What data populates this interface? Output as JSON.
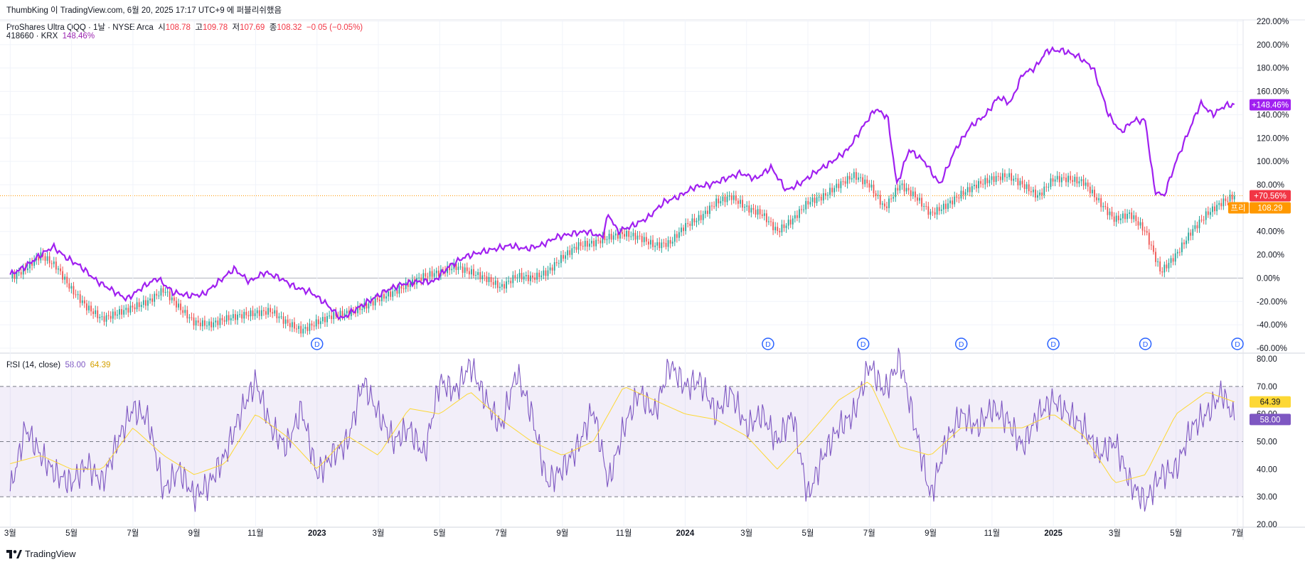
{
  "attribution": "ThumbKing 이 TradingView.com, 6월 20, 2025 17:17 UTC+9 에 퍼블리쉬했음",
  "main_legend": {
    "symbol": "ProShares Ultra QQQ · 1날 · NYSE Arca",
    "open_label": "시",
    "open": "108.78",
    "high_label": "고",
    "high": "109.78",
    "low_label": "저",
    "low": "107.69",
    "close_label": "종",
    "close": "108.32",
    "change": "−0.05 (−0.05%)"
  },
  "compare_legend": {
    "symbol": "418660 · KRX",
    "value": "148.46%"
  },
  "rsi_legend": {
    "title": "RSI (14, close)",
    "rsi": "58.00",
    "ma": "64.39"
  },
  "price_badges": {
    "compare": "+148.46%",
    "main_pct": "+70.56%",
    "pre_label": "프리",
    "pre_price": "108.29",
    "rsi_ma": "64.39",
    "rsi": "58.00"
  },
  "dividend_marker": "D",
  "branding": "TradingView",
  "colors": {
    "compare_line": "#a020f0",
    "candle_up": "#26a69a",
    "candle_down": "#ef5350",
    "rsi_line": "#7e57c2",
    "rsi_ma": "#fdd835",
    "rsi_band": "#7e57c2",
    "badge_pct": "#f23645",
    "badge_pre": "#ff9800",
    "badge_rsi_ma": "#fdd835",
    "dividend": "#2962ff"
  },
  "chart_data": [
    {
      "type": "line",
      "name": "price-panel",
      "y_unit": "%",
      "ylim": [
        -60,
        220
      ],
      "y_ticks": [
        "220.00%",
        "200.00%",
        "180.00%",
        "160.00%",
        "140.00%",
        "120.00%",
        "100.00%",
        "80.00%",
        "60.00%",
        "40.00%",
        "20.00%",
        "0.00%",
        "-20.00%",
        "-40.00%",
        "-60.00%"
      ],
      "y_tick_values": [
        220,
        200,
        180,
        160,
        140,
        120,
        100,
        80,
        60,
        40,
        20,
        0,
        -20,
        -40,
        -60
      ],
      "x_ticks": [
        "3월",
        "5월",
        "7월",
        "9월",
        "11월",
        "2023",
        "3월",
        "5월",
        "7월",
        "9월",
        "11월",
        "2024",
        "3월",
        "5월",
        "7월",
        "9월",
        "11월",
        "2025",
        "3월",
        "5월",
        "7월"
      ],
      "x_tick_months": [
        0,
        2,
        4,
        6,
        8,
        10,
        12,
        14,
        16,
        18,
        20,
        22,
        24,
        26,
        28,
        30,
        32,
        34,
        36,
        38,
        40
      ],
      "x_month_range": [
        -0.1,
        40
      ],
      "grid": true,
      "legend_position": "top-left",
      "series": [
        {
          "name": "418660 · KRX",
          "style": "line",
          "month": [
            0,
            0.5,
            1,
            1.4,
            1.8,
            2.3,
            2.8,
            3.3,
            3.8,
            4.3,
            4.8,
            5.3,
            5.8,
            6.3,
            6.8,
            7.3,
            7.8,
            8.3,
            8.8,
            9.3,
            9.8,
            10.3,
            10.8,
            11.3,
            11.8,
            12.3,
            12.8,
            13.3,
            13.8,
            14.3,
            14.8,
            15.3,
            15.8,
            16.3,
            16.8,
            17.3,
            17.8,
            18.3,
            18.8,
            19.3,
            19.5,
            19.8,
            20.3,
            20.8,
            21.3,
            21.8,
            22.3,
            22.8,
            23.3,
            23.8,
            24.3,
            24.8,
            25.3,
            25.8,
            26.2,
            26.8,
            27.3,
            27.8,
            28.2,
            28.6,
            28.9,
            29.3,
            29.8,
            30.3,
            30.8,
            31.3,
            31.8,
            32.2,
            32.6,
            33.0,
            33.4,
            33.8,
            34.3,
            34.8,
            35.3,
            35.8,
            36.2,
            36.6,
            37.0,
            37.3,
            37.6,
            38.0,
            38.4,
            38.8,
            39.2,
            39.6,
            39.9
          ],
          "value": [
            3,
            10,
            20,
            27,
            18,
            10,
            -2,
            -10,
            -18,
            -8,
            0,
            -12,
            -15,
            -14,
            -3,
            8,
            -3,
            5,
            0,
            -8,
            -12,
            -22,
            -35,
            -26,
            -18,
            -10,
            -5,
            -3,
            -3,
            10,
            18,
            22,
            25,
            28,
            25,
            28,
            35,
            38,
            40,
            35,
            55,
            40,
            45,
            52,
            65,
            70,
            78,
            80,
            85,
            90,
            85,
            95,
            75,
            82,
            90,
            100,
            110,
            130,
            145,
            138,
            80,
            110,
            100,
            80,
            110,
            130,
            140,
            155,
            150,
            175,
            180,
            195,
            195,
            190,
            180,
            140,
            125,
            135,
            135,
            75,
            70,
            100,
            125,
            150,
            140,
            148,
            148.46
          ]
        },
        {
          "name": "ProShares Ultra QQQ",
          "style": "candles",
          "month": [
            0,
            0.5,
            1,
            1.5,
            2,
            2.5,
            3,
            3.5,
            4,
            4.5,
            5,
            5.5,
            6,
            6.5,
            7,
            7.5,
            8,
            8.5,
            9,
            9.5,
            10,
            10.5,
            11,
            11.5,
            12,
            12.5,
            13,
            13.5,
            14,
            14.5,
            15,
            15.5,
            16,
            16.5,
            17,
            17.5,
            18,
            18.5,
            19,
            19.5,
            20,
            20.5,
            21,
            21.5,
            22,
            22.5,
            23,
            23.5,
            24,
            24.5,
            25,
            25.5,
            26,
            26.5,
            27,
            27.5,
            28,
            28.5,
            29,
            29.5,
            30,
            30.5,
            31,
            31.5,
            32,
            32.5,
            33,
            33.5,
            34,
            34.5,
            35,
            35.5,
            36,
            36.5,
            37,
            37.5,
            38,
            38.5,
            39,
            39.5,
            39.9
          ],
          "value": [
            0,
            8,
            20,
            10,
            -10,
            -25,
            -35,
            -30,
            -25,
            -20,
            -10,
            -25,
            -38,
            -40,
            -35,
            -32,
            -30,
            -28,
            -38,
            -45,
            -38,
            -32,
            -30,
            -25,
            -18,
            -12,
            -5,
            2,
            5,
            10,
            5,
            0,
            -8,
            2,
            0,
            5,
            18,
            28,
            30,
            35,
            38,
            35,
            28,
            30,
            45,
            52,
            65,
            70,
            60,
            55,
            40,
            50,
            65,
            70,
            80,
            88,
            80,
            60,
            80,
            70,
            55,
            62,
            72,
            80,
            85,
            88,
            80,
            70,
            85,
            85,
            82,
            65,
            50,
            55,
            40,
            5,
            20,
            40,
            55,
            65,
            70.56
          ]
        }
      ],
      "dividend_months": [
        10,
        24.7,
        27.8,
        31,
        34,
        37,
        40
      ],
      "baseline_value": 0,
      "last_value_line": 70.56
    },
    {
      "type": "line",
      "name": "rsi-panel",
      "title": "RSI (14, close)",
      "ylim": [
        20,
        80
      ],
      "y_ticks": [
        "80.00",
        "70.00",
        "60.00",
        "50.00",
        "40.00",
        "30.00",
        "20.00"
      ],
      "y_tick_values": [
        80,
        70,
        60,
        50,
        40,
        30,
        20
      ],
      "bands": {
        "upper": 70,
        "middle": 50,
        "lower": 30
      },
      "series": [
        {
          "name": "RSI",
          "month": [
            0,
            0.5,
            1,
            1.5,
            2,
            2.5,
            3,
            3.5,
            4,
            4.5,
            5,
            5.5,
            6,
            6.5,
            7,
            7.5,
            8,
            8.5,
            9,
            9.5,
            10,
            10.5,
            11,
            11.5,
            12,
            12.5,
            13,
            13.5,
            14,
            14.5,
            15,
            15.5,
            16,
            16.5,
            17,
            17.5,
            18,
            18.5,
            19,
            19.5,
            20,
            20.5,
            21,
            21.5,
            22,
            22.5,
            23,
            23.5,
            24,
            24.5,
            25,
            25.5,
            26,
            26.5,
            27,
            27.5,
            28,
            28.5,
            29,
            29.5,
            30,
            30.5,
            31,
            31.5,
            32,
            32.5,
            33,
            33.5,
            34,
            34.5,
            35,
            35.5,
            36,
            36.5,
            37,
            37.5,
            38,
            38.5,
            39,
            39.5,
            39.9
          ],
          "value": [
            32,
            55,
            45,
            38,
            35,
            42,
            35,
            50,
            62,
            58,
            32,
            40,
            30,
            35,
            45,
            60,
            72,
            55,
            48,
            62,
            38,
            45,
            50,
            72,
            60,
            50,
            55,
            45,
            72,
            68,
            78,
            65,
            55,
            75,
            60,
            35,
            40,
            48,
            62,
            35,
            55,
            68,
            60,
            78,
            70,
            72,
            60,
            68,
            55,
            60,
            50,
            60,
            30,
            45,
            55,
            60,
            78,
            68,
            80,
            55,
            30,
            50,
            60,
            55,
            62,
            58,
            48,
            60,
            65,
            60,
            55,
            45,
            50,
            35,
            28,
            38,
            40,
            55,
            60,
            68,
            58
          ]
        },
        {
          "name": "RSI MA",
          "month": [
            0,
            1,
            2,
            3,
            4,
            5,
            6,
            7,
            8,
            9,
            10,
            11,
            12,
            13,
            14,
            15,
            16,
            17,
            18,
            19,
            20,
            21,
            22,
            23,
            24,
            25,
            26,
            27,
            28,
            29,
            30,
            31,
            32,
            33,
            34,
            35,
            36,
            37,
            38,
            39,
            39.9
          ],
          "value": [
            42,
            45,
            40,
            40,
            55,
            45,
            38,
            42,
            60,
            52,
            40,
            52,
            45,
            62,
            60,
            68,
            58,
            50,
            45,
            50,
            70,
            65,
            60,
            58,
            52,
            40,
            52,
            65,
            72,
            48,
            45,
            55,
            55,
            55,
            60,
            52,
            35,
            38,
            60,
            68,
            64.39
          ]
        }
      ]
    }
  ]
}
